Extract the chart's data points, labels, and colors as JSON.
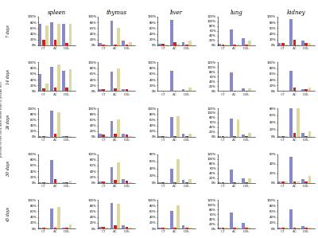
{
  "col_titles": [
    "spleen",
    "thymus",
    "liver",
    "lung",
    "kidney"
  ],
  "row_titles": [
    "7 days",
    "14 days",
    "24 days",
    "30 days",
    "45 days"
  ],
  "groups": [
    "CT",
    "AC",
    "DBL"
  ],
  "bar_colors": [
    "#8888cc",
    "#cc2222",
    "#ddd8a0"
  ],
  "y_axis_label": "percent of the cells with more than 4 γH2Ax foci",
  "data": {
    "spleen": {
      "7": {
        "CT": [
          75,
          18,
          68
        ],
        "AC": [
          80,
          18,
          75
        ],
        "DBL": [
          75,
          8,
          75
        ]
      },
      "14": {
        "CT": [
          60,
          10,
          25
        ],
        "AC": [
          85,
          12,
          92
        ],
        "DBL": [
          70,
          12,
          75
        ]
      },
      "24": {
        "CT": [
          2,
          2,
          2
        ],
        "AC": [
          92,
          12,
          85
        ],
        "DBL": [
          2,
          2,
          2
        ]
      },
      "30": {
        "CT": [
          2,
          2,
          2
        ],
        "AC": [
          80,
          12,
          2
        ],
        "DBL": [
          2,
          2,
          8
        ]
      },
      "45": {
        "CT": [
          2,
          2,
          2
        ],
        "AC": [
          70,
          2,
          75
        ],
        "DBL": [
          2,
          2,
          15
        ]
      }
    },
    "thymus": {
      "7": {
        "CT": [
          8,
          2,
          2
        ],
        "AC": [
          85,
          2,
          60
        ],
        "DBL": [
          15,
          2,
          12
        ]
      },
      "14": {
        "CT": [
          8,
          8,
          2
        ],
        "AC": [
          68,
          10,
          80
        ],
        "DBL": [
          8,
          8,
          2
        ]
      },
      "24": {
        "CT": [
          10,
          8,
          2
        ],
        "AC": [
          55,
          10,
          60
        ],
        "DBL": [
          12,
          8,
          2
        ]
      },
      "30": {
        "CT": [
          5,
          5,
          2
        ],
        "AC": [
          55,
          10,
          70
        ],
        "DBL": [
          12,
          8,
          2
        ]
      },
      "45": {
        "CT": [
          5,
          5,
          2
        ],
        "AC": [
          88,
          10,
          85
        ],
        "DBL": [
          10,
          5,
          2
        ]
      }
    },
    "liver": {
      "7": {
        "CT": [
          5,
          5,
          2
        ],
        "AC": [
          88,
          10,
          5
        ],
        "DBL": [
          10,
          2,
          15
        ]
      },
      "14": {
        "CT": [
          2,
          2,
          2
        ],
        "AC": [
          70,
          2,
          2
        ],
        "DBL": [
          8,
          2,
          12
        ]
      },
      "24": {
        "CT": [
          2,
          2,
          2
        ],
        "AC": [
          70,
          2,
          72
        ],
        "DBL": [
          10,
          2,
          12
        ]
      },
      "30": {
        "CT": [
          2,
          2,
          2
        ],
        "AC": [
          40,
          2,
          65
        ],
        "DBL": [
          8,
          2,
          10
        ]
      },
      "45": {
        "CT": [
          2,
          2,
          2
        ],
        "AC": [
          60,
          2,
          80
        ],
        "DBL": [
          12,
          2,
          2
        ]
      }
    },
    "lung": {
      "7": {
        "CT": [
          5,
          2,
          2
        ],
        "AC": [
          65,
          2,
          2
        ],
        "DBL": [
          28,
          2,
          18
        ]
      },
      "14": {
        "CT": [
          2,
          2,
          2
        ],
        "AC": [
          78,
          2,
          2
        ],
        "DBL": [
          10,
          2,
          12
        ]
      },
      "24": {
        "CT": [
          2,
          2,
          2
        ],
        "AC": [
          78,
          2,
          72
        ],
        "DBL": [
          10,
          2,
          18
        ]
      },
      "30": {
        "CT": [
          2,
          2,
          2
        ],
        "AC": [
          55,
          2,
          2
        ],
        "DBL": [
          18,
          2,
          18
        ]
      },
      "45": {
        "CT": [
          2,
          2,
          2
        ],
        "AC": [
          68,
          2,
          2
        ],
        "DBL": [
          22,
          2,
          2
        ]
      }
    },
    "kidney": {
      "7": {
        "CT": [
          8,
          8,
          2
        ],
        "AC": [
          92,
          18,
          2
        ],
        "DBL": [
          15,
          8,
          8
        ]
      },
      "14": {
        "CT": [
          2,
          2,
          2
        ],
        "AC": [
          70,
          12,
          2
        ],
        "DBL": [
          8,
          8,
          12
        ]
      },
      "24": {
        "CT": [
          2,
          2,
          2
        ],
        "AC": [
          85,
          10,
          80
        ],
        "DBL": [
          10,
          2,
          15
        ]
      },
      "30": {
        "CT": [
          2,
          2,
          2
        ],
        "AC": [
          55,
          2,
          2
        ],
        "DBL": [
          8,
          2,
          15
        ]
      },
      "45": {
        "CT": [
          2,
          2,
          2
        ],
        "AC": [
          68,
          2,
          2
        ],
        "DBL": [
          8,
          2,
          2
        ]
      }
    }
  },
  "ylim_top": {
    "spleen": {
      "7": 100,
      "14": 100,
      "24": 100,
      "30": 100,
      "45": 100
    },
    "thymus": {
      "7": 100,
      "14": 100,
      "24": 100,
      "30": 100,
      "45": 100
    },
    "liver": {
      "7": 100,
      "14": 100,
      "24": 100,
      "30": 80,
      "45": 100
    },
    "lung": {
      "7": 120,
      "14": 120,
      "24": 120,
      "30": 120,
      "45": 120
    },
    "kidney": {
      "7": 100,
      "14": 100,
      "24": 80,
      "30": 60,
      "45": 100
    }
  }
}
